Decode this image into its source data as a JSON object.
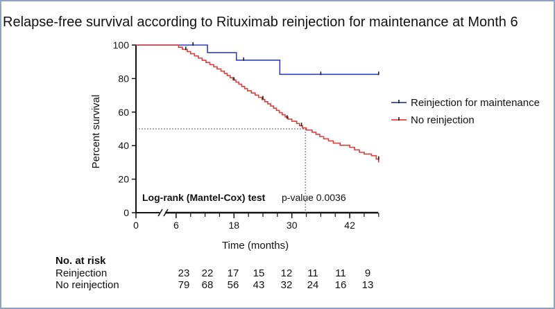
{
  "chart_data": {
    "type": "line",
    "subtype": "kaplan-meier",
    "title": "Relapse-free survival according to Rituximab reinjection for maintenance at Month 6",
    "xlabel": "Time (months)",
    "ylabel": "Percent survival",
    "xlim": [
      0,
      48
    ],
    "ylim": [
      0,
      100
    ],
    "x_ticks": [
      "0",
      "6",
      "18",
      "30",
      "42"
    ],
    "y_ticks": [
      "0",
      "20",
      "40",
      "60",
      "80",
      "100"
    ],
    "x_axis_break": true,
    "grid": false,
    "legend_position": "right",
    "series": [
      {
        "name": "Reinjection for maintenance",
        "color": "#2f3fbf",
        "steps": [
          [
            0,
            100
          ],
          [
            12.5,
            95.5
          ],
          [
            18.5,
            91
          ],
          [
            27.5,
            82.5
          ],
          [
            48,
            82.5
          ]
        ],
        "censor": [
          [
            9.5,
            100
          ],
          [
            20,
            91
          ],
          [
            36,
            82.5
          ],
          [
            48,
            82.5
          ]
        ]
      },
      {
        "name": "No reinjection",
        "color": "#e23b3b",
        "steps": [
          [
            0,
            100
          ],
          [
            6.5,
            98.7
          ],
          [
            7.3,
            97.4
          ],
          [
            8.3,
            96.1
          ],
          [
            9,
            94.8
          ],
          [
            9.8,
            93.5
          ],
          [
            10.6,
            92.2
          ],
          [
            11.4,
            90.9
          ],
          [
            12.2,
            89.6
          ],
          [
            13,
            88.3
          ],
          [
            13.8,
            87
          ],
          [
            14.5,
            85.7
          ],
          [
            15.3,
            84.4
          ],
          [
            16,
            83.1
          ],
          [
            16.6,
            81.8
          ],
          [
            17.2,
            80.5
          ],
          [
            17.8,
            79.2
          ],
          [
            18.4,
            77.9
          ],
          [
            19,
            76.6
          ],
          [
            19.6,
            75.3
          ],
          [
            20.2,
            74
          ],
          [
            20.8,
            72.7
          ],
          [
            21.6,
            71.4
          ],
          [
            22.4,
            70.1
          ],
          [
            23.1,
            68.8
          ],
          [
            23.8,
            67.5
          ],
          [
            24.4,
            66.2
          ],
          [
            25,
            64.9
          ],
          [
            25.6,
            63.6
          ],
          [
            26.2,
            62.3
          ],
          [
            26.8,
            61
          ],
          [
            27.4,
            59.7
          ],
          [
            28,
            58.4
          ],
          [
            28.6,
            57.1
          ],
          [
            29.2,
            55.8
          ],
          [
            30,
            54.5
          ],
          [
            31,
            53.2
          ],
          [
            31.6,
            51.9
          ],
          [
            32.2,
            50.6
          ],
          [
            33,
            49.3
          ],
          [
            34.2,
            48
          ],
          [
            35,
            46.7
          ],
          [
            35.8,
            45.4
          ],
          [
            36.6,
            44.1
          ],
          [
            37.6,
            42.8
          ],
          [
            38.6,
            41.5
          ],
          [
            40,
            40.2
          ],
          [
            42,
            39
          ],
          [
            43,
            37.5
          ],
          [
            44,
            36
          ],
          [
            45,
            35
          ],
          [
            46.5,
            34
          ],
          [
            47.5,
            32
          ],
          [
            48,
            30
          ]
        ],
        "censor": [
          [
            8,
            97.4
          ],
          [
            18,
            79.2
          ],
          [
            24,
            68
          ],
          [
            29,
            56.5
          ],
          [
            32,
            52
          ],
          [
            48,
            32
          ]
        ]
      }
    ],
    "dashed_reference": {
      "y": 50,
      "x": 32.8
    },
    "annotation": {
      "bold": "Log-rank (Mantel-Cox) test",
      "normal": " p-value 0.0036"
    },
    "risk_table": {
      "header": "No. at risk",
      "rows": [
        {
          "label": "Reinjection",
          "values": [
            "23",
            "22",
            "17",
            "15",
            "12",
            "11",
            "11",
            "9"
          ]
        },
        {
          "label": "No reinjection",
          "values": [
            "79",
            "68",
            "56",
            "43",
            "32",
            "24",
            "16",
            "13"
          ]
        }
      ]
    }
  }
}
